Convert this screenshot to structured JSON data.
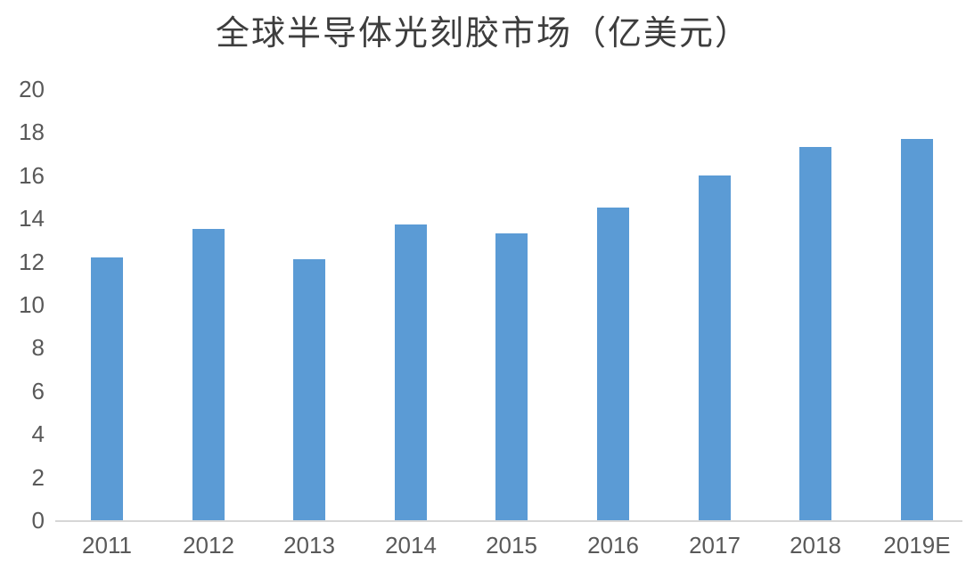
{
  "chart_data": {
    "type": "bar",
    "title": "全球半导体光刻胶市场（亿美元）",
    "categories": [
      "2011",
      "2012",
      "2013",
      "2014",
      "2015",
      "2016",
      "2017",
      "2018",
      "2019E"
    ],
    "values": [
      12.2,
      13.5,
      12.1,
      13.7,
      13.3,
      14.5,
      16.0,
      17.3,
      17.7
    ],
    "xlabel": "",
    "ylabel": "",
    "ylim": [
      0,
      20
    ],
    "ytick_step": 2,
    "yticks": [
      0,
      2,
      4,
      6,
      8,
      10,
      12,
      14,
      16,
      18,
      20
    ],
    "grid": false,
    "legend_position": "none",
    "bar_color": "#5B9BD5",
    "axis_line_color": "#D6D6D6",
    "tick_label_color": "#595959",
    "title_color": "#3D3D3D"
  }
}
